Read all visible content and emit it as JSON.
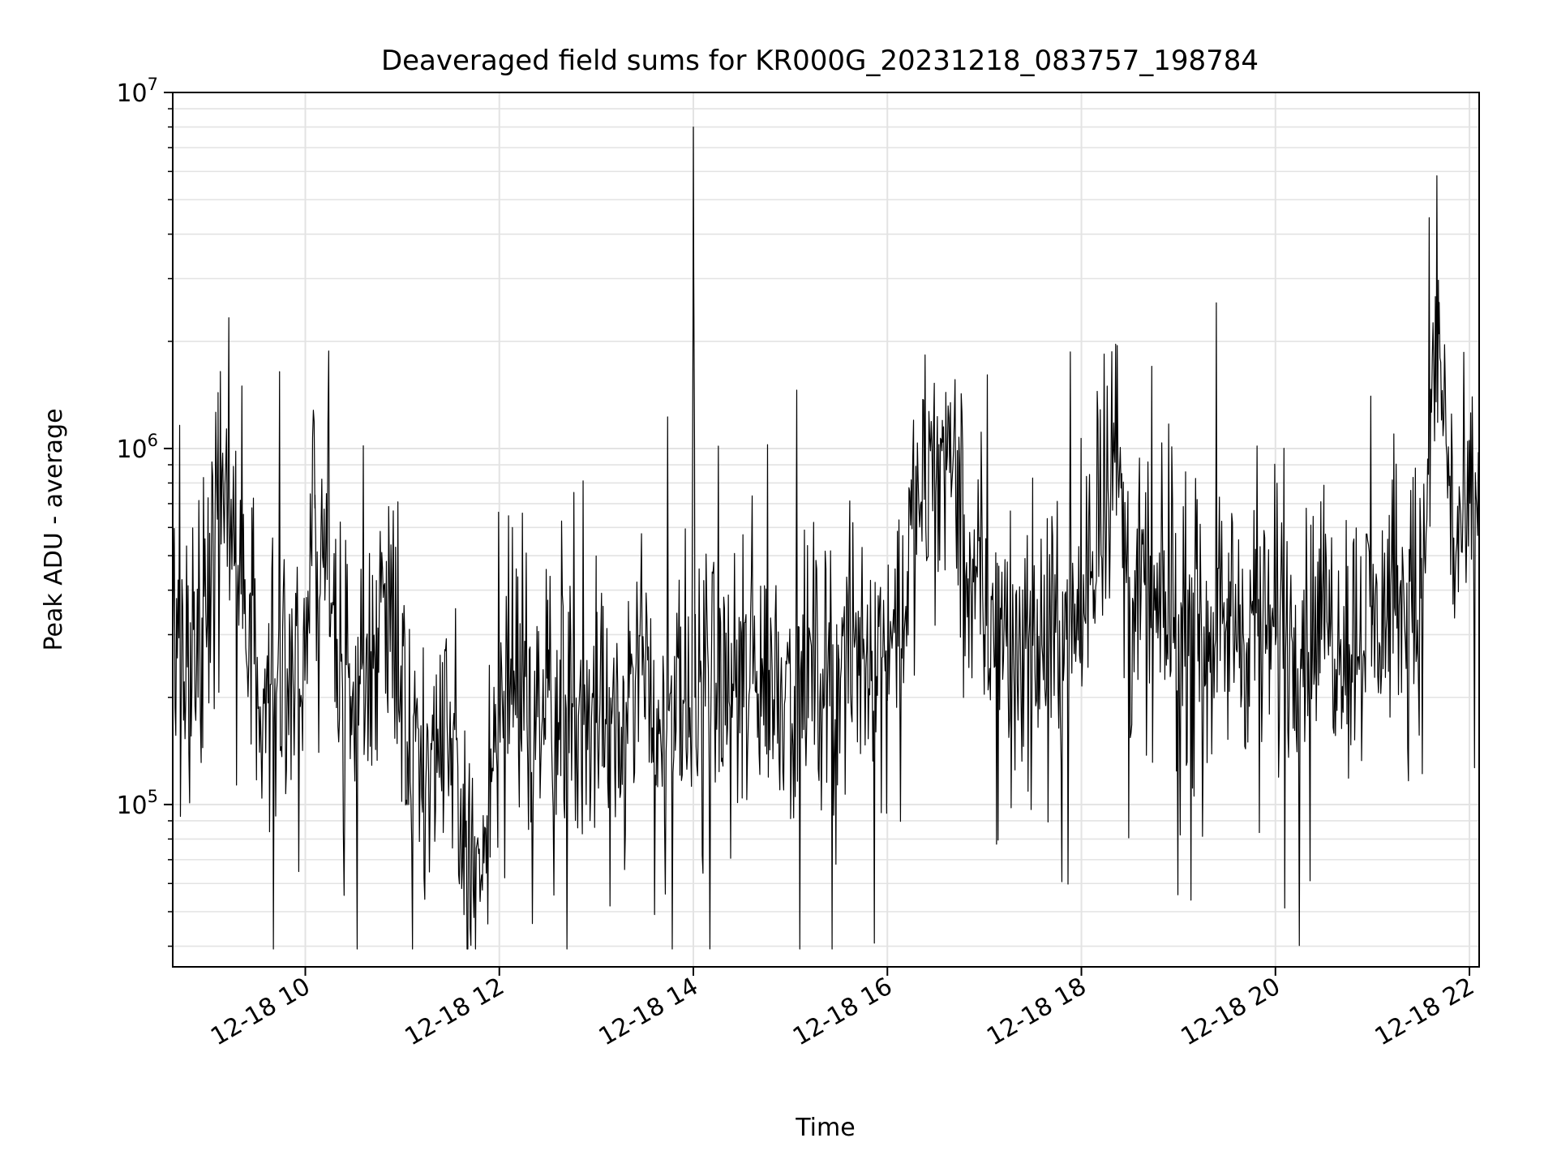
{
  "chart_data": {
    "type": "line",
    "title": "Deaveraged field sums for KR000G_20231218_083757_198784",
    "xlabel": "Time",
    "ylabel": "Peak ADU - average",
    "yscale": "log",
    "xlim": [
      "2023-12-18 08:38",
      "2023-12-18 22:06"
    ],
    "ylim": [
      35000,
      10000000
    ],
    "x_tick_labels": [
      "12-18 10",
      "12-18 12",
      "12-18 14",
      "12-18 16",
      "12-18 18",
      "12-18 20",
      "12-18 22"
    ],
    "x_ticks": [
      "2023-12-18 10:00",
      "2023-12-18 12:00",
      "2023-12-18 14:00",
      "2023-12-18 16:00",
      "2023-12-18 18:00",
      "2023-12-18 20:00",
      "2023-12-18 22:00"
    ],
    "y_tick_labels": [
      {
        "base": "10",
        "exp": "5",
        "value": 100000
      },
      {
        "base": "10",
        "exp": "6",
        "value": 1000000
      },
      {
        "base": "10",
        "exp": "7",
        "value": 10000000
      }
    ],
    "grid": true,
    "line_color": "#000000",
    "series": [
      {
        "x": [
          "2023-12-18 08:38",
          "2023-12-18 09:00",
          "2023-12-18 09:06",
          "2023-12-18 09:30",
          "2023-12-18 10:00",
          "2023-12-18 10:06",
          "2023-12-18 10:30",
          "2023-12-18 10:54",
          "2023-12-18 11:03",
          "2023-12-18 11:30",
          "2023-12-18 11:48",
          "2023-12-18 12:00",
          "2023-12-18 12:30",
          "2023-12-18 13:00",
          "2023-12-18 13:30",
          "2023-12-18 13:59",
          "2023-12-18 14:00",
          "2023-12-18 14:01",
          "2023-12-18 14:30",
          "2023-12-18 15:00",
          "2023-12-18 15:30",
          "2023-12-18 16:00",
          "2023-12-18 16:34",
          "2023-12-18 17:00",
          "2023-12-18 17:30",
          "2023-12-18 18:00",
          "2023-12-18 18:20",
          "2023-12-18 18:30",
          "2023-12-18 19:00",
          "2023-12-18 19:30",
          "2023-12-18 20:00",
          "2023-12-18 20:30",
          "2023-12-18 21:00",
          "2023-12-18 21:30",
          "2023-12-18 21:41",
          "2023-12-18 21:50",
          "2023-12-18 22:06"
        ],
        "values": [
          250000,
          350000,
          1100000,
          200000,
          250000,
          740000,
          180000,
          440000,
          150000,
          130000,
          55000,
          180000,
          200000,
          170000,
          200000,
          150000,
          8000000,
          200000,
          220000,
          230000,
          250000,
          270000,
          1200000,
          300000,
          280000,
          320000,
          1180000,
          350000,
          320000,
          330000,
          300000,
          320000,
          320000,
          380000,
          2100000,
          560000,
          600000
        ]
      }
    ]
  }
}
